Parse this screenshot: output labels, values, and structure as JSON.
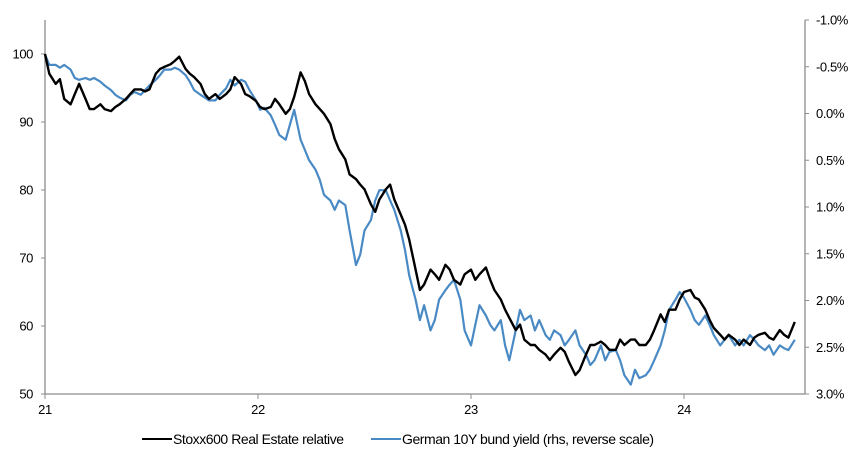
{
  "chart_data": {
    "type": "line",
    "title": "",
    "xlabel": "",
    "ylabel": "",
    "x_ticks": [
      "21",
      "22",
      "23",
      "24"
    ],
    "x_tick_values": [
      21,
      22,
      23,
      24
    ],
    "xlim": [
      21,
      24.55
    ],
    "ylim_left": [
      50,
      105
    ],
    "y_ticks_left": [
      50,
      60,
      70,
      80,
      90,
      100
    ],
    "y_tick_labels_left": [
      "50",
      "60",
      "70",
      "80",
      "90",
      "100"
    ],
    "ylim_right": [
      -1.0,
      3.0
    ],
    "right_axis_reversed": true,
    "y_ticks_right": [
      -1.0,
      -0.5,
      0.0,
      0.5,
      1.0,
      1.5,
      2.0,
      2.5,
      3.0
    ],
    "y_tick_labels_right": [
      "-1.0%",
      "-0.5%",
      "0.0%",
      "0.5%",
      "1.0%",
      "1.5%",
      "2.0%",
      "2.5%",
      "3.0%"
    ],
    "grid": false,
    "legend_position": "bottom",
    "x": [
      21.0,
      21.02,
      21.05,
      21.07,
      21.09,
      21.12,
      21.14,
      21.16,
      21.19,
      21.21,
      21.23,
      21.26,
      21.28,
      21.31,
      21.33,
      21.35,
      21.38,
      21.4,
      21.42,
      21.45,
      21.47,
      21.49,
      21.52,
      21.54,
      21.56,
      21.59,
      21.61,
      21.63,
      21.66,
      21.68,
      21.7,
      21.73,
      21.75,
      21.77,
      21.8,
      21.82,
      21.85,
      21.87,
      21.89,
      21.92,
      21.94,
      21.96,
      21.99,
      22.01,
      22.03,
      22.06,
      22.08,
      22.1,
      22.13,
      22.15,
      22.17,
      22.2,
      22.22,
      22.24,
      22.27,
      22.29,
      22.31,
      22.34,
      22.36,
      22.38,
      22.41,
      22.43,
      22.46,
      22.48,
      22.5,
      22.53,
      22.55,
      22.57,
      22.6,
      22.62,
      22.64,
      22.67,
      22.69,
      22.71,
      22.74,
      22.76,
      22.78,
      22.81,
      22.83,
      22.85,
      22.88,
      22.9,
      22.92,
      22.95,
      22.97,
      23.0,
      23.02,
      23.04,
      23.07,
      23.09,
      23.11,
      23.14,
      23.16,
      23.18,
      23.21,
      23.23,
      23.25,
      23.28,
      23.3,
      23.32,
      23.35,
      23.37,
      23.39,
      23.42,
      23.44,
      23.46,
      23.49,
      23.51,
      23.54,
      23.56,
      23.58,
      23.61,
      23.63,
      23.65,
      23.68,
      23.7,
      23.72,
      23.75,
      23.77,
      23.79,
      23.82,
      23.84,
      23.86,
      23.89,
      23.91,
      23.93,
      23.96,
      23.98,
      24.0,
      24.03,
      24.05,
      24.07,
      24.1,
      24.12,
      24.14,
      24.17,
      24.19,
      24.21,
      24.24,
      24.26,
      24.28,
      24.31,
      24.33,
      24.35,
      24.38,
      24.4,
      24.42,
      24.45,
      24.47,
      24.49,
      24.52
    ],
    "series": [
      {
        "name": "Stoxx600 Real Estate relative",
        "axis": "left",
        "color": "#000000",
        "values": [
          100,
          97.1,
          95.6,
          96.3,
          93.4,
          92.6,
          94.1,
          95.6,
          93.4,
          91.9,
          91.9,
          92.6,
          91.9,
          91.6,
          92.2,
          92.6,
          93.4,
          94.1,
          94.8,
          94.8,
          94.5,
          94.8,
          97.1,
          97.8,
          98.1,
          98.5,
          99.0,
          99.6,
          97.8,
          97.1,
          96.6,
          95.6,
          94.1,
          93.4,
          94.1,
          93.4,
          94.1,
          94.8,
          96.6,
          95.6,
          94.1,
          93.8,
          93.1,
          92.2,
          91.9,
          92.2,
          93.4,
          92.6,
          91.2,
          91.9,
          93.7,
          97.3,
          96.0,
          94.1,
          92.6,
          91.9,
          91.2,
          89.7,
          87.5,
          86.0,
          84.5,
          82.3,
          81.6,
          80.8,
          80.1,
          77.9,
          76.8,
          78.6,
          80.1,
          80.8,
          78.6,
          76.4,
          74.9,
          72.7,
          68.3,
          65.3,
          66.1,
          68.3,
          67.6,
          66.8,
          69.0,
          68.3,
          66.8,
          66.1,
          67.6,
          68.3,
          66.8,
          67.6,
          68.6,
          66.8,
          65.3,
          63.9,
          62.4,
          61.2,
          59.4,
          60.2,
          58.0,
          57.2,
          57.2,
          56.5,
          55.8,
          55.0,
          55.8,
          56.8,
          56.2,
          54.7,
          52.8,
          53.5,
          55.8,
          57.2,
          57.2,
          57.7,
          57.2,
          56.5,
          56.5,
          58.0,
          57.2,
          58.0,
          58.0,
          57.2,
          57.2,
          58.0,
          59.4,
          61.7,
          60.6,
          62.4,
          62.4,
          63.9,
          65.0,
          65.3,
          64.2,
          63.9,
          62.4,
          60.9,
          59.7,
          58.7,
          58.0,
          58.7,
          58.0,
          57.2,
          58.0,
          57.2,
          58.3,
          58.7,
          59.0,
          58.3,
          58.0,
          59.4,
          58.7,
          58.3,
          60.6
        ]
      },
      {
        "name": "German 10Y bund yield (rhs, reverse scale)",
        "axis": "right",
        "color": "#4a8ac4",
        "values": [
          -0.63,
          -0.52,
          -0.52,
          -0.49,
          -0.52,
          -0.47,
          -0.38,
          -0.36,
          -0.38,
          -0.36,
          -0.38,
          -0.34,
          -0.3,
          -0.25,
          -0.2,
          -0.17,
          -0.14,
          -0.2,
          -0.23,
          -0.2,
          -0.25,
          -0.3,
          -0.36,
          -0.41,
          -0.47,
          -0.47,
          -0.49,
          -0.47,
          -0.41,
          -0.34,
          -0.25,
          -0.2,
          -0.17,
          -0.14,
          -0.14,
          -0.2,
          -0.27,
          -0.36,
          -0.3,
          -0.36,
          -0.34,
          -0.25,
          -0.14,
          -0.04,
          -0.06,
          0.02,
          0.12,
          0.23,
          0.28,
          0.12,
          -0.04,
          0.28,
          0.39,
          0.5,
          0.6,
          0.71,
          0.87,
          0.93,
          1.03,
          0.93,
          0.98,
          1.25,
          1.62,
          1.51,
          1.25,
          1.14,
          0.93,
          0.82,
          0.82,
          0.93,
          1.03,
          1.25,
          1.46,
          1.73,
          1.99,
          2.21,
          2.05,
          2.32,
          2.21,
          1.99,
          1.89,
          1.83,
          1.78,
          1.99,
          2.32,
          2.48,
          2.26,
          2.05,
          2.16,
          2.26,
          2.32,
          2.21,
          2.48,
          2.64,
          2.32,
          2.1,
          2.21,
          2.16,
          2.32,
          2.21,
          2.37,
          2.42,
          2.32,
          2.37,
          2.48,
          2.42,
          2.32,
          2.48,
          2.58,
          2.69,
          2.64,
          2.48,
          2.64,
          2.55,
          2.53,
          2.64,
          2.8,
          2.9,
          2.74,
          2.83,
          2.8,
          2.74,
          2.64,
          2.48,
          2.32,
          2.1,
          1.99,
          1.91,
          1.97,
          2.1,
          2.21,
          2.26,
          2.16,
          2.26,
          2.37,
          2.48,
          2.42,
          2.37,
          2.48,
          2.42,
          2.48,
          2.37,
          2.42,
          2.48,
          2.53,
          2.48,
          2.58,
          2.48,
          2.51,
          2.53,
          2.42
        ]
      }
    ]
  },
  "legend": {
    "items": [
      "Stoxx600 Real Estate relative",
      "German 10Y bund yield (rhs, reverse scale)"
    ]
  },
  "colors": {
    "axis": "#8c8c8c",
    "series1": "#000000",
    "series2": "#4a8ac4"
  }
}
